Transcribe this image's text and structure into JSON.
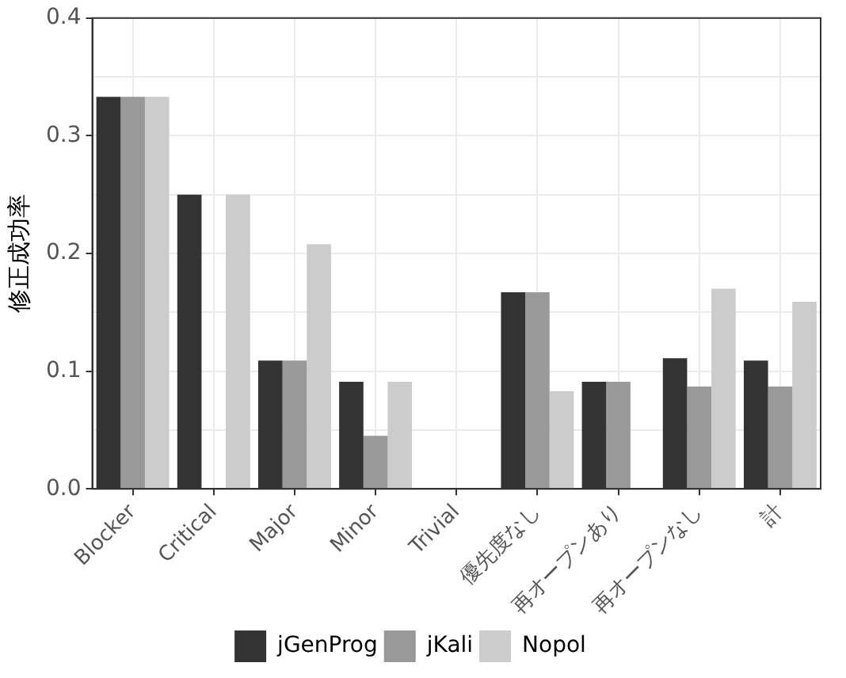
{
  "chart_data": {
    "type": "bar",
    "ylabel": "修正成功率",
    "categories": [
      "Blocker",
      "Critical",
      "Major",
      "Minor",
      "Trivial",
      "優先度なし",
      "再オープンあり",
      "再オープンなし",
      "計"
    ],
    "series": [
      {
        "name": "jGenProg",
        "color": "#333333",
        "values": [
          0.333,
          0.25,
          0.109,
          0.091,
          0,
          0.167,
          0.091,
          0.111,
          0.109
        ]
      },
      {
        "name": "jKali",
        "color": "#999999",
        "values": [
          0.333,
          0,
          0.109,
          0.045,
          0,
          0.167,
          0.091,
          0.087,
          0.087
        ]
      },
      {
        "name": "Nopol",
        "color": "#cccccc",
        "values": [
          0.333,
          0.25,
          0.208,
          0.091,
          0,
          0.083,
          0,
          0.17,
          0.159
        ]
      }
    ],
    "ylim": [
      0,
      0.4
    ],
    "yticks": [
      {
        "value": 0,
        "label": "0.0"
      },
      {
        "value": 0.05,
        "label": null
      },
      {
        "value": 0.1,
        "label": "0.1"
      },
      {
        "value": 0.15,
        "label": null
      },
      {
        "value": 0.2,
        "label": "0.2"
      },
      {
        "value": 0.25,
        "label": null
      },
      {
        "value": 0.3,
        "label": "0.3"
      },
      {
        "value": 0.35,
        "label": null
      },
      {
        "value": 0.4,
        "label": "0.4"
      }
    ],
    "grid": true,
    "legend": "bottom"
  }
}
